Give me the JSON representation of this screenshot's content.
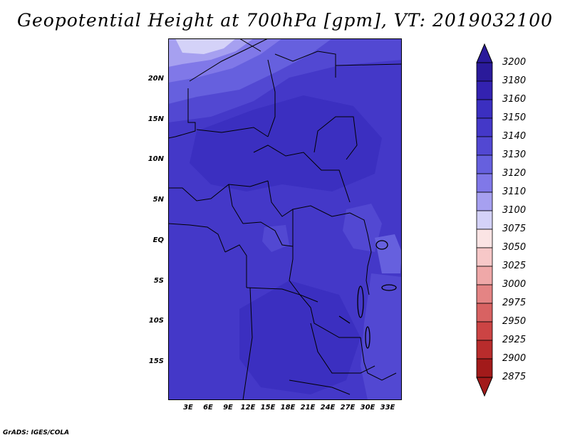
{
  "title": "Geopotential Height at 700hPa [gpm], VT: 2019032100",
  "credit": "GrADS: IGES/COLA",
  "map": {
    "projection": "lat-lon",
    "variable": "Geopotential Height at 700hPa",
    "units": "gpm",
    "lat_range": [
      -20,
      25
    ],
    "lon_range": [
      0,
      35
    ],
    "lat_ticks": [
      {
        "value": 20,
        "label": "20N"
      },
      {
        "value": 15,
        "label": "15N"
      },
      {
        "value": 10,
        "label": "10N"
      },
      {
        "value": 5,
        "label": "5N"
      },
      {
        "value": 0,
        "label": "EQ"
      },
      {
        "value": -5,
        "label": "5S"
      },
      {
        "value": -10,
        "label": "10S"
      },
      {
        "value": -15,
        "label": "15S"
      }
    ],
    "lon_ticks": [
      {
        "value": 3,
        "label": "3E"
      },
      {
        "value": 6,
        "label": "6E"
      },
      {
        "value": 9,
        "label": "9E"
      },
      {
        "value": 12,
        "label": "12E"
      },
      {
        "value": 15,
        "label": "15E"
      },
      {
        "value": 18,
        "label": "18E"
      },
      {
        "value": 21,
        "label": "21E"
      },
      {
        "value": 24,
        "label": "24E"
      },
      {
        "value": 27,
        "label": "27E"
      },
      {
        "value": 30,
        "label": "30E"
      },
      {
        "value": 33,
        "label": "33E"
      }
    ]
  },
  "colorbar": {
    "labels": [
      "3200",
      "3180",
      "3160",
      "3150",
      "3140",
      "3130",
      "3120",
      "3110",
      "3100",
      "3075",
      "3050",
      "3025",
      "3000",
      "2975",
      "2950",
      "2925",
      "2900",
      "2875"
    ],
    "colors": [
      "#2a1a9a",
      "#3322b0",
      "#3b2fc0",
      "#4438c8",
      "#5248d2",
      "#6660de",
      "#8078e8",
      "#a6a0f0",
      "#d4d2f8",
      "#fbe4e4",
      "#f7c8c8",
      "#efa8a8",
      "#e48484",
      "#d86262",
      "#cc4444",
      "#b82c2c",
      "#a21a1a"
    ],
    "top_arrow_color": "#2a1a9a",
    "bottom_arrow_color": "#a21a1a"
  }
}
